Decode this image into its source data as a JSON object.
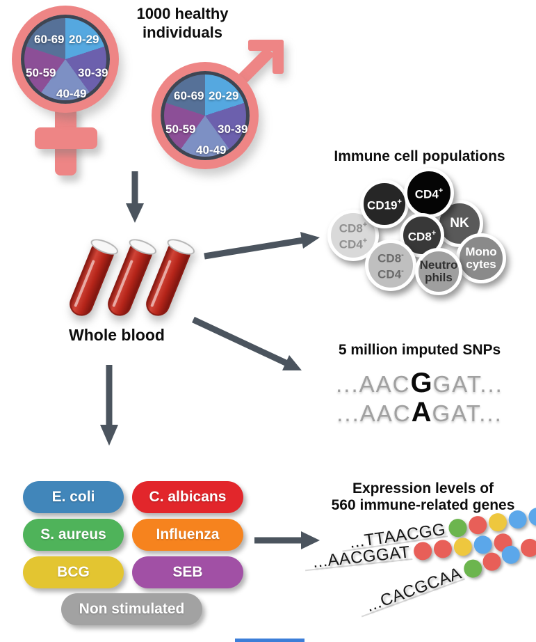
{
  "cohort": {
    "title_line1": "1000 healthy",
    "title_line2": "individuals",
    "age_groups": [
      "20-29",
      "30-39",
      "40-49",
      "50-59",
      "60-69"
    ],
    "pie_colors": [
      "#55a8e0",
      "#6c60ad",
      "#7d90c4",
      "#8c4f97",
      "#567198"
    ],
    "symbol_color": "#ee8585"
  },
  "whole_blood": {
    "label": "Whole blood"
  },
  "immune": {
    "title": "Immune cell populations",
    "cells": [
      {
        "name": "CD8+CD4+",
        "line1": "CD8",
        "sup1": "+",
        "line2": "CD4",
        "sup2": "+",
        "bg": "#d9d9d9",
        "fg": "#8f8f8f"
      },
      {
        "name": "CD19+",
        "line1": "CD19",
        "sup1": "+",
        "line2": "",
        "sup2": "",
        "bg": "#262626",
        "fg": "#ffffff"
      },
      {
        "name": "NK",
        "line1": "NK",
        "sup1": "",
        "line2": "",
        "sup2": "",
        "bg": "#595959",
        "fg": "#ffffff"
      },
      {
        "name": "CD4+",
        "line1": "CD4",
        "sup1": "+",
        "line2": "",
        "sup2": "",
        "bg": "#050505",
        "fg": "#ffffff"
      },
      {
        "name": "CD8+",
        "line1": "CD8",
        "sup1": "+",
        "line2": "",
        "sup2": "",
        "bg": "#383838",
        "fg": "#ffffff"
      },
      {
        "name": "CD8-CD4-",
        "line1": "CD8",
        "sup1": "-",
        "line2": "CD4",
        "sup2": "-",
        "bg": "#bfbfbf",
        "fg": "#6b6b6b"
      },
      {
        "name": "Monocytes",
        "line1": "Mono",
        "sup1": "",
        "line2": "cytes",
        "sup2": "",
        "bg": "#8a8a8a",
        "fg": "#ffffff"
      },
      {
        "name": "Neutrophils",
        "line1": "Neutro",
        "sup1": "",
        "line2": "phils",
        "sup2": "",
        "bg": "#9f9f9f",
        "fg": "#2f2f2f"
      }
    ]
  },
  "snps": {
    "title": "5 million imputed SNPs",
    "sequences": [
      {
        "pre": "...AAC",
        "highlight": "G",
        "post": "GAT..."
      },
      {
        "pre": "...AAC",
        "highlight": "A",
        "post": "GAT..."
      }
    ]
  },
  "stimuli": {
    "items": [
      {
        "label": "E. coli",
        "color": "#4186ba"
      },
      {
        "label": "C. albicans",
        "color": "#e2262b"
      },
      {
        "label": "S. aureus",
        "color": "#4fb35a"
      },
      {
        "label": "Influenza",
        "color": "#f6831e"
      },
      {
        "label": "BCG",
        "color": "#e3c531"
      },
      {
        "label": "SEB",
        "color": "#a150a5"
      },
      {
        "label": "Non stimulated",
        "color": "#a2a2a2"
      }
    ]
  },
  "expression": {
    "title_line1": "Expression levels of",
    "title_line2": "560 immune-related genes",
    "dot_palette": {
      "green": "#6cb54e",
      "red": "#e85f58",
      "yellow": "#eec73e",
      "blue": "#5ba7ea"
    },
    "rows": [
      {
        "seq": "...TTAACGG",
        "dots": [
          "green",
          "red",
          "yellow",
          "blue",
          "blue"
        ]
      },
      {
        "seq": "...AACGGAT",
        "dots": [
          "red",
          "red",
          "yellow",
          "blue",
          "red"
        ]
      },
      {
        "seq": "...CACGCAA",
        "dots": [
          "green",
          "red",
          "blue",
          "red",
          "red"
        ]
      }
    ]
  },
  "flow": {
    "arrow_color": "#4b545e",
    "footer_line_color": "#3c7ed8"
  }
}
